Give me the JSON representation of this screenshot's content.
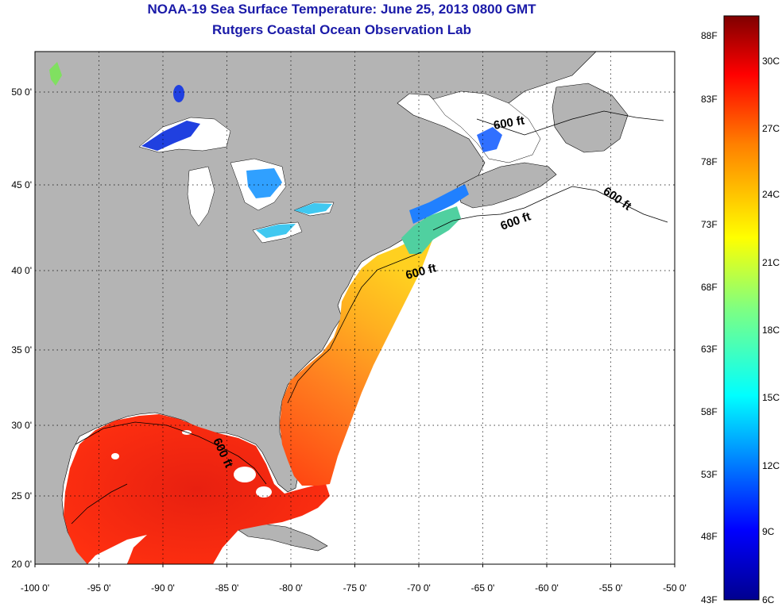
{
  "title": "NOAA-19 Sea Surface Temperature:  June 25, 2013 0800 GMT",
  "subtitle": "Rutgers Coastal Ocean Observation Lab",
  "x_ticks": [
    "-100 0'",
    "-95 0'",
    "-90 0'",
    "-85 0'",
    "-80 0'",
    "-75 0'",
    "-70 0'",
    "-65 0'",
    "-60 0'",
    "-55 0'",
    "-50 0'"
  ],
  "y_ticks": [
    "50 0'",
    "45 0'",
    "40 0'",
    "35 0'",
    "30 0'",
    "25 0'",
    "20 0'"
  ],
  "colorbar": {
    "fahrenheit": [
      "88F",
      "83F",
      "78F",
      "73F",
      "68F",
      "63F",
      "58F",
      "53F",
      "48F",
      "43F"
    ],
    "celsius": [
      "30C",
      "27C",
      "24C",
      "21C",
      "18C",
      "15C",
      "12C",
      "9C",
      "6C"
    ],
    "colors": [
      "#7f0000",
      "#ff0000",
      "#ff8000",
      "#ffff00",
      "#80ff80",
      "#00ffff",
      "#0080ff",
      "#0000ff",
      "#00008f"
    ]
  },
  "contour_labels": [
    "600 ft",
    "600 ft",
    "600 ft",
    "600 ft",
    "600 ft"
  ],
  "colors": {
    "land": "#b4b4b4",
    "title": "#1a1aa8",
    "water_nodata": "#ffffff"
  }
}
